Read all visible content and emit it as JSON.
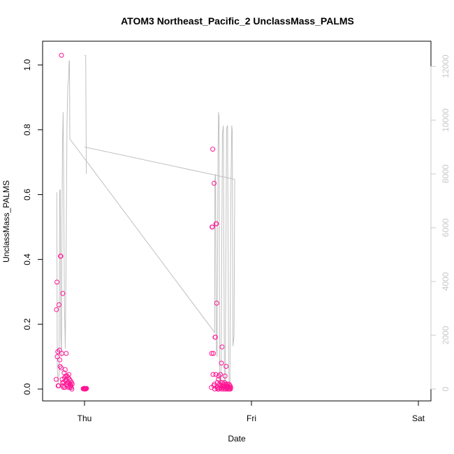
{
  "chart_data": {
    "type": "scatter",
    "title": "ATOM3 Northeast_Pacific_2 UnclassMass_PALMS",
    "xlabel": "Date",
    "ylabel": "UnclassMass_PALMS",
    "x_ticks": [
      "Thu",
      "Fri",
      "Sat"
    ],
    "y_ticks": [
      "0.0",
      "0.2",
      "0.4",
      "0.6",
      "0.8",
      "1.0"
    ],
    "y2_ticks": [
      "0",
      "2000",
      "4000",
      "6000",
      "8000",
      "10000",
      "12000"
    ],
    "ylim": [
      0,
      1.03
    ],
    "y2lim": [
      0,
      12000
    ],
    "grid": false,
    "colors": {
      "points": "#ff1493",
      "line": "#c0c0c0",
      "right_axis": "#c8c8c8"
    },
    "series": [
      {
        "kind": "points",
        "points": [
          [
            -0.17,
            0.03
          ],
          [
            -0.168,
            0.245
          ],
          [
            -0.165,
            0.33
          ],
          [
            -0.163,
            0.1
          ],
          [
            -0.16,
            0.115
          ],
          [
            -0.158,
            0.01
          ],
          [
            -0.155,
            0.01
          ],
          [
            -0.153,
            0.26
          ],
          [
            -0.15,
            0.12
          ],
          [
            -0.148,
            0.09
          ],
          [
            -0.146,
            0.07
          ],
          [
            -0.144,
            0.41
          ],
          [
            -0.142,
            0.41
          ],
          [
            -0.14,
            0.065
          ],
          [
            -0.138,
            1.03
          ],
          [
            -0.136,
            0.11
          ],
          [
            -0.134,
            0.03
          ],
          [
            -0.132,
            0.02
          ],
          [
            -0.13,
            0.295
          ],
          [
            -0.128,
            0.01
          ],
          [
            -0.126,
            0.005
          ],
          [
            -0.124,
            0.02
          ],
          [
            -0.122,
            0.05
          ],
          [
            -0.12,
            0.035
          ],
          [
            -0.118,
            0.005
          ],
          [
            -0.116,
            0.06
          ],
          [
            -0.114,
            0.025
          ],
          [
            -0.112,
            0.04
          ],
          [
            -0.11,
            0.11
          ],
          [
            -0.108,
            0.03
          ],
          [
            -0.106,
            0.015
          ],
          [
            -0.104,
            0.04
          ],
          [
            -0.102,
            0.02
          ],
          [
            -0.1,
            0.01
          ],
          [
            -0.098,
            0.035
          ],
          [
            -0.096,
            0.005
          ],
          [
            -0.094,
            0.045
          ],
          [
            -0.092,
            0.02
          ],
          [
            -0.09,
            0.03
          ],
          [
            -0.088,
            0.005
          ],
          [
            -0.086,
            0.015
          ],
          [
            -0.084,
            0.025
          ],
          [
            -0.082,
            0.01
          ],
          [
            -0.08,
            0.005
          ],
          [
            -0.078,
            0.02
          ],
          [
            -0.076,
            0.0
          ],
          [
            -0.074,
            0.015
          ],
          [
            -0.008,
            0.001
          ],
          [
            -0.006,
            0.001
          ],
          [
            -0.004,
            0.002
          ],
          [
            -0.002,
            0.0
          ],
          [
            0.0,
            0.001
          ],
          [
            0.002,
            0.002
          ],
          [
            0.004,
            0.001
          ],
          [
            0.006,
            0.0
          ],
          [
            0.008,
            0.001
          ],
          [
            0.012,
            0.002
          ],
          [
            0.76,
            0.005
          ],
          [
            0.762,
            0.11
          ],
          [
            0.764,
            0.5
          ],
          [
            0.766,
            0.5
          ],
          [
            0.768,
            0.74
          ],
          [
            0.77,
            0.045
          ],
          [
            0.772,
            0.11
          ],
          [
            0.774,
            0.01
          ],
          [
            0.776,
            0.635
          ],
          [
            0.778,
            0.015
          ],
          [
            0.78,
            0.0
          ],
          [
            0.782,
            0.16
          ],
          [
            0.784,
            0.16
          ],
          [
            0.786,
            0.045
          ],
          [
            0.788,
            0.51
          ],
          [
            0.79,
            0.51
          ],
          [
            0.792,
            0.265
          ],
          [
            0.794,
            0.005
          ],
          [
            0.796,
            0.02
          ],
          [
            0.798,
            0.0
          ],
          [
            0.8,
            0.005
          ],
          [
            0.802,
            0.03
          ],
          [
            0.804,
            0.04
          ],
          [
            0.806,
            0.0
          ],
          [
            0.808,
            0.015
          ],
          [
            0.81,
            0.005
          ],
          [
            0.812,
            0.01
          ],
          [
            0.814,
            0.045
          ],
          [
            0.816,
            0.02
          ],
          [
            0.818,
            0.005
          ],
          [
            0.82,
            0.08
          ],
          [
            0.822,
            0.0
          ],
          [
            0.824,
            0.13
          ],
          [
            0.826,
            0.02
          ],
          [
            0.828,
            0.01
          ],
          [
            0.83,
            0.005
          ],
          [
            0.832,
            0.015
          ],
          [
            0.834,
            0.0
          ],
          [
            0.836,
            0.01
          ],
          [
            0.838,
            0.005
          ],
          [
            0.84,
            0.02
          ],
          [
            0.842,
            0.04
          ],
          [
            0.844,
            0.0
          ],
          [
            0.846,
            0.015
          ],
          [
            0.848,
            0.07
          ],
          [
            0.85,
            0.005
          ],
          [
            0.852,
            0.01
          ],
          [
            0.854,
            0.0
          ],
          [
            0.856,
            0.015
          ],
          [
            0.858,
            0.005
          ],
          [
            0.86,
            0.01
          ],
          [
            0.862,
            0.0
          ],
          [
            0.864,
            0.005
          ],
          [
            0.866,
            0.015
          ],
          [
            0.868,
            0.0
          ],
          [
            0.87,
            0.005
          ],
          [
            0.872,
            0.01
          ],
          [
            0.874,
            0.0
          ],
          [
            0.876,
            0.005
          ]
        ]
      },
      {
        "kind": "line",
        "axis": "right",
        "segments": [
          [
            [
              -0.17,
              7300
            ],
            [
              -0.166,
              7300
            ],
            [
              -0.163,
              800
            ],
            [
              -0.158,
              200
            ],
            [
              -0.152,
              600
            ],
            [
              -0.149,
              7400
            ],
            [
              -0.145,
              7400
            ],
            [
              -0.142,
              2000
            ],
            [
              -0.138,
              1200
            ],
            [
              -0.135,
              6000
            ],
            [
              -0.132,
              9200
            ],
            [
              -0.128,
              10300
            ],
            [
              -0.125,
              8000
            ],
            [
              -0.12,
              3000
            ],
            [
              -0.115,
              1500
            ],
            [
              -0.11,
              5000
            ],
            [
              -0.105,
              9800
            ],
            [
              -0.1,
              11300
            ],
            [
              -0.096,
              11500
            ],
            [
              -0.092,
              12200
            ],
            [
              -0.09,
              12200
            ],
            [
              -0.088,
              9300
            ],
            [
              0.78,
              2100
            ],
            [
              0.781,
              7800
            ],
            [
              0.785,
              8000
            ],
            [
              0.79,
              1500
            ],
            [
              0.794,
              1200
            ],
            [
              0.8,
              8800
            ],
            [
              0.803,
              10300
            ],
            [
              0.806,
              10100
            ],
            [
              0.81,
              200
            ],
            [
              0.818,
              200
            ],
            [
              0.826,
              9500
            ],
            [
              0.832,
              9800
            ],
            [
              0.838,
              300
            ],
            [
              0.843,
              300
            ],
            [
              0.851,
              9700
            ],
            [
              0.857,
              9800
            ],
            [
              0.863,
              1000
            ],
            [
              0.866,
              300
            ],
            [
              0.871,
              200
            ],
            [
              0.876,
              7000
            ],
            [
              0.882,
              9800
            ],
            [
              0.885,
              9600
            ],
            [
              0.889,
              1600
            ],
            [
              0.893,
              1800
            ],
            [
              0.896,
              2000
            ],
            [
              0.9,
              7800
            ]
          ],
          [
            [
              0.0,
              12400
            ],
            [
              0.007,
              12400
            ],
            [
              0.011,
              8000
            ]
          ],
          [
            [
              0.0,
              9000
            ],
            [
              0.9,
              7800
            ]
          ]
        ]
      }
    ]
  }
}
